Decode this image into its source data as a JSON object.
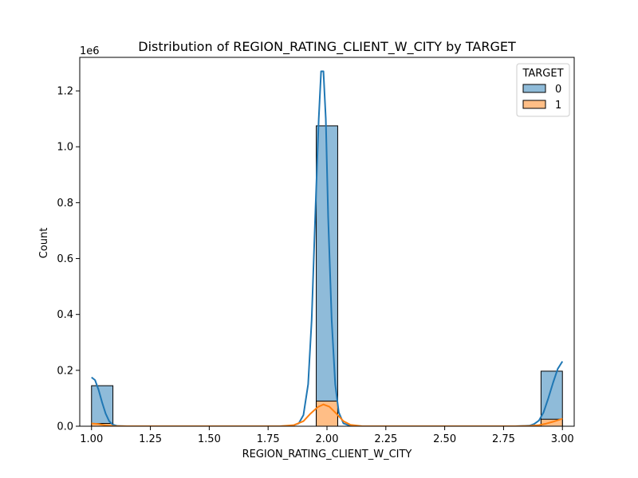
{
  "chart_data": {
    "type": "bar",
    "title": "Distribution of REGION_RATING_CLIENT_W_CITY by TARGET",
    "xlabel": "REGION_RATING_CLIENT_W_CITY",
    "ylabel": "Count",
    "y_offset_label": "1e6",
    "xlim": [
      0.95,
      3.05
    ],
    "ylim": [
      0,
      1.32
    ],
    "x_ticks": [
      1.0,
      1.25,
      1.5,
      1.75,
      2.0,
      2.25,
      2.5,
      2.75,
      3.0
    ],
    "x_tick_labels": [
      "1.00",
      "1.25",
      "1.50",
      "1.75",
      "2.00",
      "2.25",
      "2.50",
      "2.75",
      "3.00"
    ],
    "y_ticks": [
      0,
      0.2,
      0.4,
      0.6,
      0.8,
      1.0,
      1.2
    ],
    "y_tick_labels": [
      "0.0",
      "0.2",
      "0.4",
      "0.6",
      "0.8",
      "1.0",
      "1.2"
    ],
    "bin_width": 0.0909,
    "bins": [
      {
        "x_start": 1.0,
        "x_end": 1.0909
      },
      {
        "x_start": 1.9545,
        "x_end": 2.0455
      },
      {
        "x_start": 2.9091,
        "x_end": 3.0
      }
    ],
    "legend_title": "TARGET",
    "legend_position": "top-right",
    "grid": false,
    "series": [
      {
        "name": "0",
        "color": "#1f77b4",
        "fill": "#8fbbd9",
        "values": [
          0.145,
          1.075,
          0.197
        ],
        "kde": [
          [
            1.0,
            0.175
          ],
          [
            1.015,
            0.165
          ],
          [
            1.03,
            0.13
          ],
          [
            1.045,
            0.085
          ],
          [
            1.06,
            0.045
          ],
          [
            1.075,
            0.018
          ],
          [
            1.09,
            0.006
          ],
          [
            1.11,
            0.001
          ],
          [
            1.15,
            0.0
          ],
          [
            1.8,
            0.0
          ],
          [
            1.85,
            0.001
          ],
          [
            1.88,
            0.01
          ],
          [
            1.9,
            0.04
          ],
          [
            1.92,
            0.15
          ],
          [
            1.935,
            0.38
          ],
          [
            1.95,
            0.75
          ],
          [
            1.965,
            1.1
          ],
          [
            1.975,
            1.27
          ],
          [
            1.985,
            1.27
          ],
          [
            1.995,
            1.1
          ],
          [
            2.005,
            0.75
          ],
          [
            2.02,
            0.38
          ],
          [
            2.035,
            0.15
          ],
          [
            2.05,
            0.05
          ],
          [
            2.07,
            0.01
          ],
          [
            2.1,
            0.001
          ],
          [
            2.15,
            0.0
          ],
          [
            2.8,
            0.0
          ],
          [
            2.86,
            0.002
          ],
          [
            2.88,
            0.008
          ],
          [
            2.9,
            0.02
          ],
          [
            2.92,
            0.05
          ],
          [
            2.94,
            0.1
          ],
          [
            2.96,
            0.155
          ],
          [
            2.98,
            0.205
          ],
          [
            3.0,
            0.232
          ]
        ]
      },
      {
        "name": "1",
        "color": "#ff7f0e",
        "fill": "#ffbe86",
        "values": [
          0.01,
          0.09,
          0.025
        ],
        "kde": [
          [
            1.0,
            0.01
          ],
          [
            1.03,
            0.008
          ],
          [
            1.06,
            0.003
          ],
          [
            1.09,
            0.0006
          ],
          [
            1.15,
            0.0
          ],
          [
            1.8,
            0.0
          ],
          [
            1.86,
            0.004
          ],
          [
            1.9,
            0.018
          ],
          [
            1.93,
            0.045
          ],
          [
            1.96,
            0.068
          ],
          [
            1.985,
            0.078
          ],
          [
            2.01,
            0.07
          ],
          [
            2.04,
            0.045
          ],
          [
            2.07,
            0.018
          ],
          [
            2.1,
            0.005
          ],
          [
            2.15,
            0.0
          ],
          [
            2.8,
            0.0
          ],
          [
            2.86,
            0.001
          ],
          [
            2.9,
            0.004
          ],
          [
            2.93,
            0.009
          ],
          [
            2.96,
            0.016
          ],
          [
            3.0,
            0.027
          ]
        ]
      }
    ]
  }
}
